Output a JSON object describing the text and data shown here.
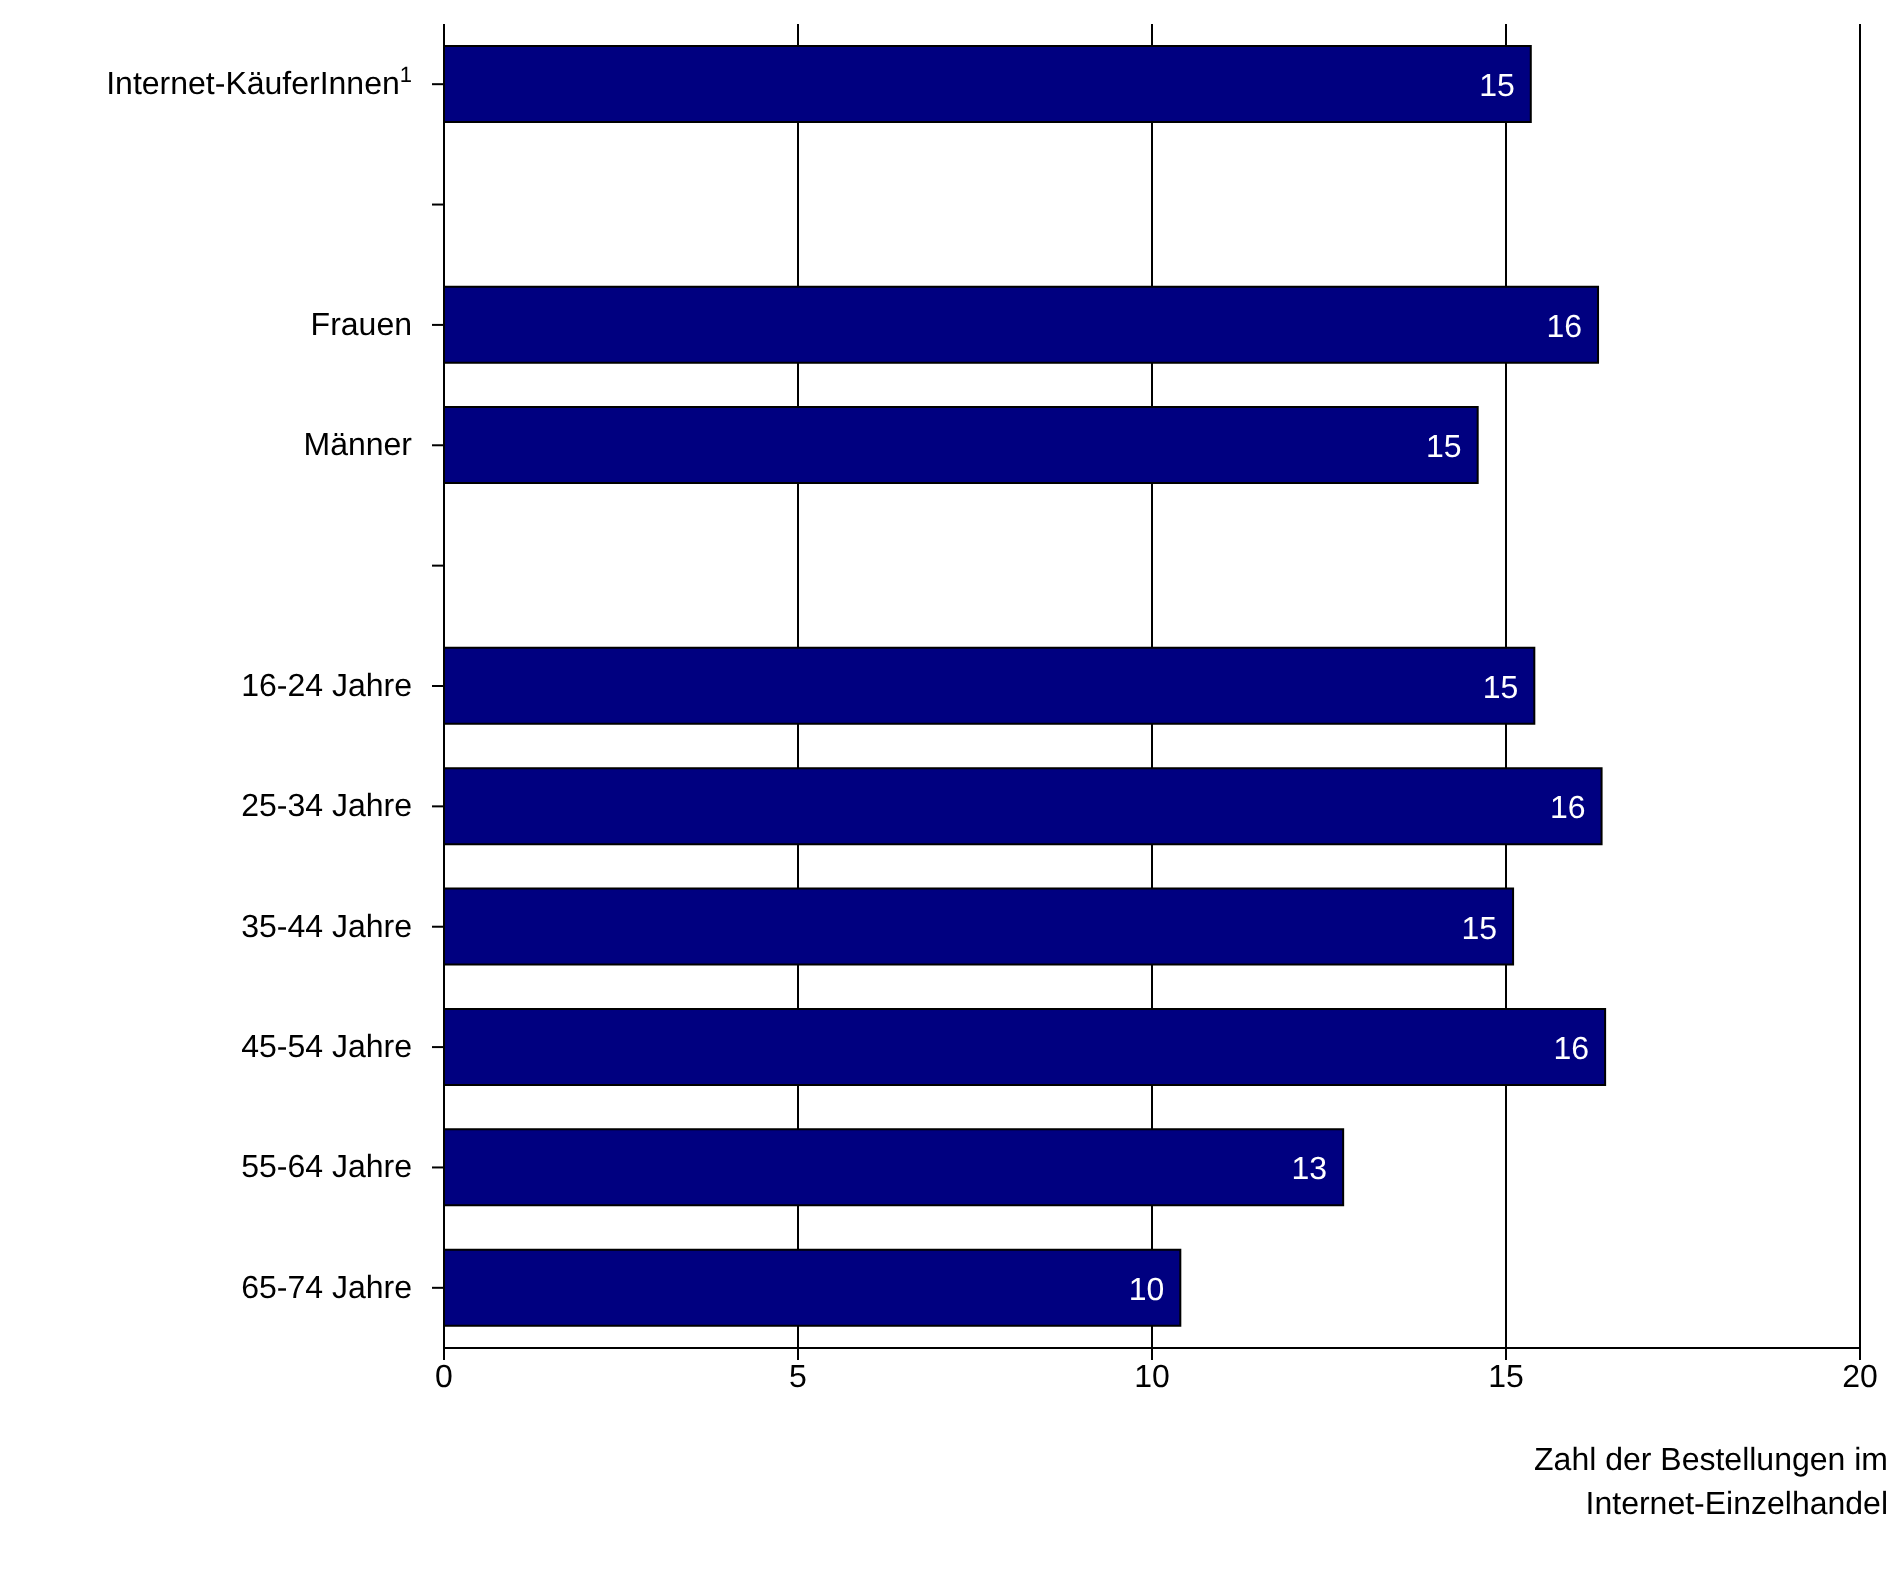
{
  "chart_data": {
    "type": "bar",
    "orientation": "horizontal",
    "xlabel": "Zahl der Bestellungen im Internet-Einzelhandel",
    "categories": [
      "Internet-KäuferInnen$^{1}$",
      null,
      "Frauen",
      "Männer",
      null,
      "16-24 Jahre",
      "25-34 Jahre",
      "35-44 Jahre",
      "45-54 Jahre",
      "55-64 Jahre",
      "65-74 Jahre"
    ],
    "values": [
      15.35,
      null,
      16.3,
      14.6,
      null,
      15.4,
      16.35,
      15.1,
      16.4,
      12.7,
      10.4
    ],
    "value_labels": [
      "15",
      null,
      "16",
      "15",
      null,
      "15",
      "16",
      "15",
      "16",
      "13",
      "10"
    ],
    "color": "#000080",
    "xlim": [
      0,
      20
    ],
    "xticks": [
      0,
      5,
      10,
      15,
      20
    ],
    "grid": "x"
  }
}
